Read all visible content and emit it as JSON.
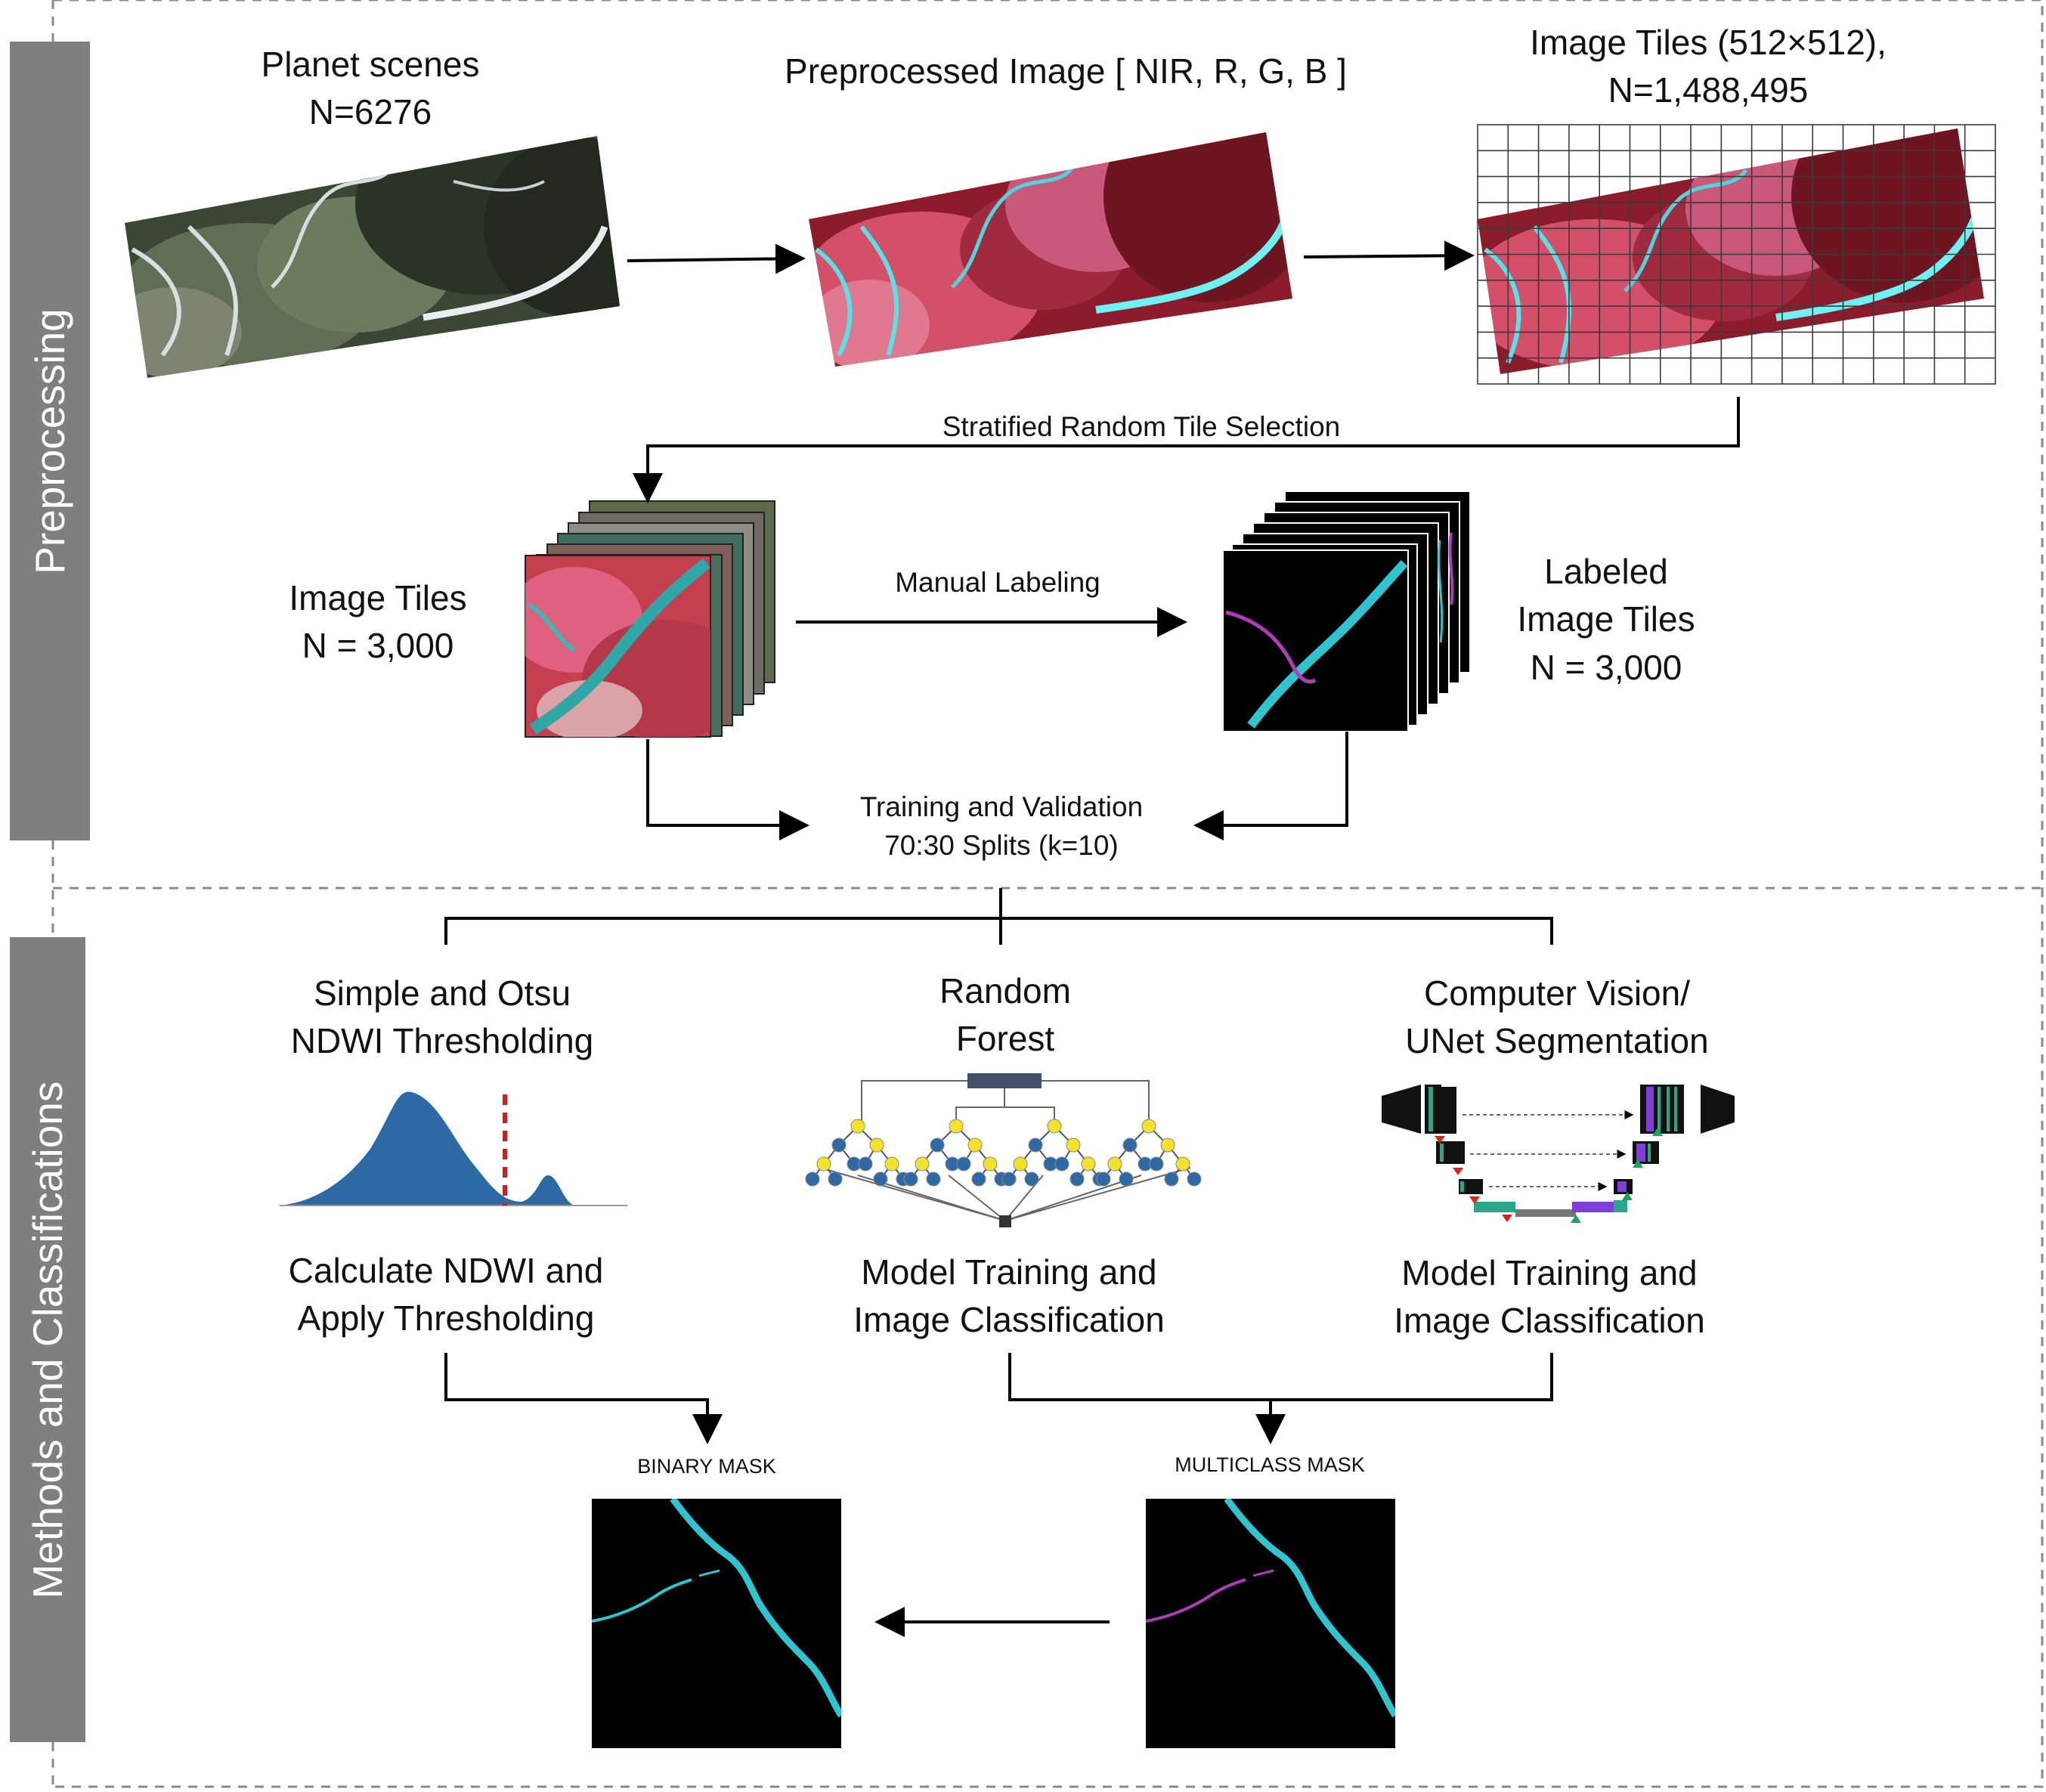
{
  "sections": {
    "preprocessing": "Preprocessing",
    "methods": "Methods and Classifications"
  },
  "preprocessing": {
    "planet": {
      "line1": "Planet scenes",
      "line2": "N=6276"
    },
    "preprocessed": {
      "line1": "Preprocessed Image [ NIR, R, G, B ]"
    },
    "tiles_all": {
      "line1": "Image Tiles (512×512),",
      "line2": "N=1,488,495"
    },
    "selection": "Stratified Random Tile Selection",
    "tiles_sample": {
      "line1": "Image Tiles",
      "line2": "N = 3,000"
    },
    "manual": "Manual Labeling",
    "labeled": {
      "line1": "Labeled",
      "line2": "Image Tiles",
      "line3": "N = 3,000"
    },
    "training": {
      "line1": "Training and Validation",
      "line2": "70:30 Splits (k=10)"
    }
  },
  "methods": {
    "ndwi": {
      "title1": "Simple and Otsu",
      "title2": "NDWI Thresholding",
      "desc1": "Calculate NDWI and",
      "desc2": "Apply Thresholding"
    },
    "rf": {
      "title1": "Random",
      "title2": "Forest",
      "desc1": "Model Training and",
      "desc2": "Image Classification"
    },
    "unet": {
      "title1": "Computer Vision/",
      "title2": "UNet Segmentation",
      "desc1": "Model Training and",
      "desc2": "Image Classification"
    }
  },
  "outputs": {
    "binary": "BINARY MASK",
    "multiclass": "MULTICLASS MASK"
  },
  "colors": {
    "sidebar": "#7f7f7f",
    "water": "#2ec4d0",
    "secondary_water": "#b03cb8",
    "nir_vegetation": "#8c1c2c",
    "histogram": "#2d6aa5",
    "threshold": "#cc1f1f",
    "rf_root": "#44506a",
    "rf_split": "#f2e22a",
    "rf_leaf": "#2d6aa5"
  }
}
